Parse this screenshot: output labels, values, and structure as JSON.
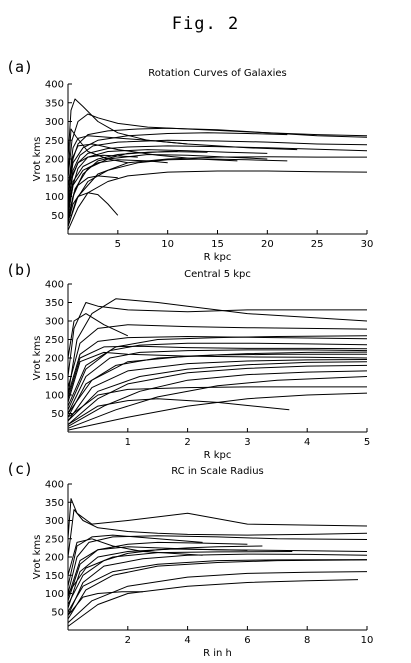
{
  "figure": {
    "title": "Fig. 2"
  },
  "chart_data": [
    {
      "panel": "(a)",
      "type": "line",
      "title": "Rotation Curves of Galaxies",
      "xlabel": "R kpc",
      "ylabel": "Vrot kms",
      "xlim": [
        0,
        30
      ],
      "ylim": [
        0,
        400
      ],
      "xticks": [
        5,
        10,
        15,
        20,
        25,
        30
      ],
      "yticks": [
        50,
        100,
        150,
        200,
        250,
        300,
        350,
        400
      ],
      "grid": false,
      "series": [
        {
          "x": [
            0,
            0.4,
            1,
            2,
            3,
            5,
            8,
            12,
            16,
            20,
            25,
            30
          ],
          "y": [
            150,
            250,
            300,
            320,
            310,
            295,
            285,
            280,
            275,
            270,
            265,
            262
          ]
        },
        {
          "x": [
            0,
            0.3,
            0.7,
            1.5,
            3,
            5,
            8,
            12
          ],
          "y": [
            200,
            330,
            360,
            340,
            300,
            270,
            250,
            240
          ]
        },
        {
          "x": [
            0,
            0.5,
            1,
            2,
            4,
            7,
            10,
            15,
            20,
            25,
            30
          ],
          "y": [
            100,
            200,
            240,
            265,
            275,
            280,
            282,
            278,
            270,
            262,
            258
          ]
        },
        {
          "x": [
            0,
            0.5,
            1.2,
            2.5,
            5,
            10,
            15,
            20,
            25,
            30
          ],
          "y": [
            80,
            170,
            210,
            235,
            245,
            250,
            248,
            245,
            240,
            238
          ]
        },
        {
          "x": [
            0,
            0.4,
            1,
            2,
            4,
            6,
            10,
            15,
            20,
            25,
            30
          ],
          "y": [
            60,
            150,
            190,
            215,
            228,
            232,
            235,
            233,
            230,
            226,
            222
          ]
        },
        {
          "x": [
            0,
            0.5,
            1,
            2,
            4,
            8,
            12,
            16,
            20
          ],
          "y": [
            50,
            130,
            175,
            205,
            220,
            225,
            222,
            218,
            215
          ]
        },
        {
          "x": [
            0,
            0.6,
            1.5,
            3,
            6,
            10,
            14
          ],
          "y": [
            40,
            110,
            160,
            195,
            215,
            220,
            218
          ]
        },
        {
          "x": [
            0,
            0.5,
            1,
            2,
            4,
            8,
            12,
            18,
            23
          ],
          "y": [
            120,
            230,
            255,
            262,
            258,
            250,
            240,
            230,
            225
          ]
        },
        {
          "x": [
            0,
            0.8,
            2,
            4,
            7,
            10,
            14,
            18,
            22
          ],
          "y": [
            20,
            90,
            140,
            170,
            190,
            198,
            200,
            198,
            195
          ]
        },
        {
          "x": [
            0,
            0.5,
            1,
            2,
            3.5,
            5,
            7
          ],
          "y": [
            80,
            160,
            190,
            205,
            210,
            208,
            205
          ]
        },
        {
          "x": [
            0,
            0.4,
            1,
            2.5,
            5,
            9,
            13,
            17
          ],
          "y": [
            90,
            200,
            235,
            240,
            225,
            210,
            200,
            195
          ]
        },
        {
          "x": [
            0,
            0.3,
            0.8,
            2,
            4,
            6
          ],
          "y": [
            150,
            280,
            260,
            220,
            200,
            190
          ]
        },
        {
          "x": [
            0,
            0.5,
            1,
            2,
            3,
            4,
            5
          ],
          "y": [
            30,
            80,
            100,
            110,
            105,
            80,
            50
          ]
        },
        {
          "x": [
            0,
            0.5,
            1,
            2,
            3,
            5
          ],
          "y": [
            40,
            100,
            130,
            150,
            155,
            150
          ]
        },
        {
          "x": [
            0,
            1,
            2,
            4,
            6,
            10,
            15,
            20,
            25,
            30
          ],
          "y": [
            10,
            70,
            110,
            140,
            155,
            165,
            168,
            168,
            166,
            165
          ]
        },
        {
          "x": [
            0,
            1,
            3,
            6,
            10,
            15,
            20,
            25,
            30
          ],
          "y": [
            20,
            100,
            160,
            190,
            200,
            205,
            206,
            205,
            205
          ]
        },
        {
          "x": [
            0,
            0.5,
            1.5,
            3,
            6,
            10,
            14,
            18,
            22
          ],
          "y": [
            100,
            190,
            230,
            250,
            262,
            268,
            270,
            268,
            265
          ]
        },
        {
          "x": [
            0,
            0.5,
            1.5,
            3,
            5,
            8,
            11
          ],
          "y": [
            60,
            140,
            180,
            200,
            212,
            218,
            220
          ]
        },
        {
          "x": [
            0,
            0.7,
            2,
            4,
            8,
            12,
            16,
            20
          ],
          "y": [
            30,
            120,
            175,
            200,
            212,
            210,
            205,
            200
          ]
        },
        {
          "x": [
            0,
            0.5,
            1.5,
            3,
            5,
            8,
            10
          ],
          "y": [
            50,
            130,
            170,
            190,
            198,
            195,
            190
          ]
        }
      ]
    },
    {
      "panel": "(b)",
      "type": "line",
      "title": "Central 5 kpc",
      "xlabel": "R kpc",
      "ylabel": "Vrot kms",
      "xlim": [
        0,
        5
      ],
      "ylim": [
        0,
        400
      ],
      "xticks": [
        1,
        2,
        3,
        4,
        5
      ],
      "yticks": [
        50,
        100,
        150,
        200,
        250,
        300,
        350,
        400
      ],
      "grid": false,
      "series": [
        {
          "x": [
            0,
            0.1,
            0.3,
            0.5,
            1,
            2,
            3,
            4,
            5
          ],
          "y": [
            150,
            280,
            350,
            340,
            330,
            325,
            330,
            330,
            330
          ]
        },
        {
          "x": [
            0,
            0.15,
            0.4,
            0.8,
            1.5,
            2,
            3,
            5
          ],
          "y": [
            100,
            250,
            320,
            360,
            350,
            340,
            320,
            300
          ]
        },
        {
          "x": [
            0,
            0.2,
            0.5,
            1,
            2,
            3,
            4,
            5
          ],
          "y": [
            120,
            240,
            280,
            290,
            285,
            282,
            280,
            278
          ]
        },
        {
          "x": [
            0,
            0.2,
            0.5,
            1,
            2,
            3,
            4,
            5
          ],
          "y": [
            100,
            210,
            245,
            255,
            258,
            256,
            254,
            252
          ]
        },
        {
          "x": [
            0,
            0.3,
            0.7,
            1.2,
            2,
            3,
            4,
            5
          ],
          "y": [
            60,
            170,
            220,
            235,
            240,
            240,
            238,
            236
          ]
        },
        {
          "x": [
            0,
            0.3,
            0.7,
            1.2,
            2,
            3,
            4,
            5
          ],
          "y": [
            50,
            150,
            200,
            215,
            220,
            222,
            222,
            220
          ]
        },
        {
          "x": [
            0,
            0.3,
            0.8,
            1.5,
            2.5,
            3.5,
            5
          ],
          "y": [
            40,
            130,
            180,
            200,
            208,
            210,
            210
          ]
        },
        {
          "x": [
            0,
            0.2,
            0.6,
            1,
            2,
            3,
            4,
            5
          ],
          "y": [
            80,
            190,
            215,
            210,
            205,
            203,
            202,
            200
          ]
        },
        {
          "x": [
            0,
            0.4,
            1,
            2,
            3,
            4,
            5
          ],
          "y": [
            30,
            120,
            165,
            185,
            192,
            195,
            196
          ]
        },
        {
          "x": [
            0,
            0.5,
            1,
            2,
            3,
            4,
            5
          ],
          "y": [
            20,
            90,
            130,
            160,
            172,
            178,
            180
          ]
        },
        {
          "x": [
            0,
            0.6,
            1.2,
            2,
            3,
            4,
            5
          ],
          "y": [
            15,
            70,
            110,
            140,
            155,
            162,
            165
          ]
        },
        {
          "x": [
            0,
            0.8,
            1.5,
            2.5,
            3.5,
            5
          ],
          "y": [
            10,
            60,
            95,
            125,
            140,
            150
          ]
        },
        {
          "x": [
            0,
            0.5,
            1,
            1.5,
            2.5,
            3.7
          ],
          "y": [
            20,
            70,
            85,
            90,
            80,
            60
          ]
        },
        {
          "x": [
            0,
            0.5,
            1,
            2,
            3,
            4,
            5
          ],
          "y": [
            40,
            100,
            115,
            120,
            122,
            122,
            122
          ]
        },
        {
          "x": [
            0,
            0.1,
            0.3,
            0.6,
            1
          ],
          "y": [
            200,
            300,
            320,
            290,
            260
          ]
        },
        {
          "x": [
            0,
            0.3,
            0.8,
            1.5,
            2.5,
            3.5,
            5
          ],
          "y": [
            70,
            180,
            230,
            250,
            255,
            258,
            260
          ]
        },
        {
          "x": [
            0,
            0.4,
            1,
            2,
            3,
            4,
            5
          ],
          "y": [
            50,
            140,
            190,
            205,
            212,
            215,
            216
          ]
        },
        {
          "x": [
            0,
            0.2,
            0.6,
            1.2,
            2,
            3,
            4,
            5
          ],
          "y": [
            90,
            200,
            230,
            232,
            228,
            226,
            226,
            225
          ]
        },
        {
          "x": [
            0,
            0.5,
            1.2,
            2,
            3,
            4,
            5
          ],
          "y": [
            30,
            110,
            150,
            170,
            182,
            188,
            190
          ]
        },
        {
          "x": [
            0,
            1,
            2,
            3,
            4,
            5
          ],
          "y": [
            5,
            40,
            70,
            90,
            100,
            105
          ]
        }
      ]
    },
    {
      "panel": "(c)",
      "type": "line",
      "title": "RC in Scale Radius",
      "xlabel": "R in h",
      "ylabel": "Vrot kms",
      "xlim": [
        0,
        10
      ],
      "ylim": [
        0,
        400
      ],
      "xticks": [
        2,
        4,
        6,
        8,
        10
      ],
      "yticks": [
        50,
        100,
        150,
        200,
        250,
        300,
        350,
        400
      ],
      "grid": false,
      "series": [
        {
          "x": [
            0,
            0.2,
            0.5,
            1,
            2,
            3,
            4,
            6,
            8,
            10
          ],
          "y": [
            200,
            330,
            300,
            280,
            270,
            265,
            262,
            260,
            262,
            265
          ]
        },
        {
          "x": [
            0,
            0.1,
            0.3,
            0.8,
            2,
            4,
            6,
            10
          ],
          "y": [
            250,
            360,
            320,
            290,
            300,
            320,
            290,
            285
          ]
        },
        {
          "x": [
            0,
            0.3,
            0.7,
            1.5,
            3,
            5,
            7,
            10
          ],
          "y": [
            100,
            200,
            240,
            255,
            258,
            255,
            250,
            248
          ]
        },
        {
          "x": [
            0,
            0.4,
            1,
            2,
            3,
            4.5,
            6
          ],
          "y": [
            80,
            180,
            220,
            235,
            240,
            238,
            235
          ]
        },
        {
          "x": [
            0,
            0.4,
            1,
            2,
            3.5,
            5,
            7,
            10
          ],
          "y": [
            60,
            160,
            200,
            215,
            222,
            220,
            218,
            215
          ]
        },
        {
          "x": [
            0,
            0.5,
            1.2,
            2.5,
            4,
            6,
            8,
            10
          ],
          "y": [
            40,
            130,
            175,
            195,
            205,
            208,
            207,
            205
          ]
        },
        {
          "x": [
            0,
            0.3,
            0.8,
            1.5,
            3,
            4.5
          ],
          "y": [
            120,
            230,
            255,
            260,
            250,
            240
          ]
        },
        {
          "x": [
            0,
            0.6,
            1.5,
            3,
            5,
            7,
            10
          ],
          "y": [
            30,
            110,
            150,
            175,
            185,
            190,
            192
          ]
        },
        {
          "x": [
            0,
            0.8,
            2,
            4,
            6,
            8,
            10
          ],
          "y": [
            20,
            80,
            120,
            145,
            155,
            158,
            160
          ]
        },
        {
          "x": [
            0,
            1,
            2,
            4,
            6,
            8,
            9.7
          ],
          "y": [
            10,
            70,
            100,
            120,
            130,
            135,
            138
          ]
        },
        {
          "x": [
            0,
            0.5,
            1,
            1.8,
            2.5
          ],
          "y": [
            40,
            90,
            100,
            105,
            105
          ]
        },
        {
          "x": [
            0,
            0.3,
            0.8,
            1.5,
            2.5,
            3.5,
            4.5
          ],
          "y": [
            150,
            240,
            250,
            230,
            215,
            210,
            205
          ]
        },
        {
          "x": [
            0,
            0.4,
            1,
            2,
            3,
            4,
            5,
            6
          ],
          "y": [
            90,
            190,
            220,
            228,
            225,
            222,
            220,
            218
          ]
        },
        {
          "x": [
            0,
            0.5,
            1.2,
            2,
            3,
            4,
            5,
            6.5
          ],
          "y": [
            70,
            150,
            190,
            210,
            220,
            225,
            228,
            230
          ]
        },
        {
          "x": [
            0,
            0.5,
            1.5,
            3,
            5,
            7,
            10
          ],
          "y": [
            50,
            120,
            160,
            180,
            190,
            192,
            193
          ]
        },
        {
          "x": [
            0,
            0.6,
            1.5,
            3,
            5,
            7.5
          ],
          "y": [
            100,
            170,
            200,
            212,
            214,
            215
          ]
        }
      ]
    }
  ]
}
